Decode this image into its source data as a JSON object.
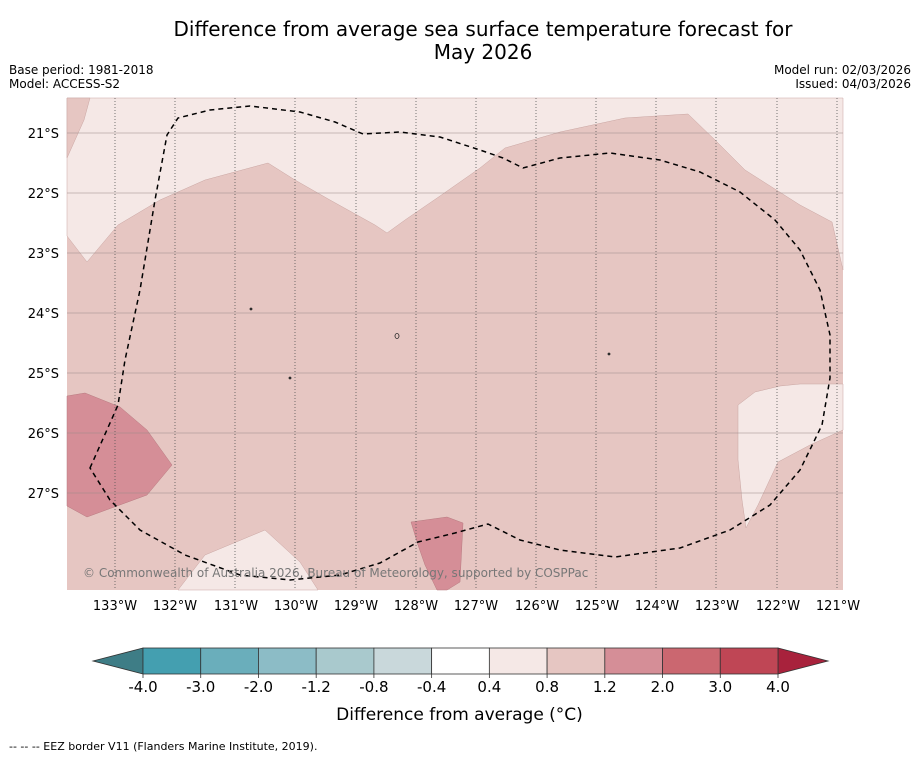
{
  "title_line1": "Difference from average sea surface temperature forecast for",
  "title_line2": "May 2026",
  "base_period": "Base period: 1981-2018",
  "model": "Model: ACCESS-S2",
  "model_run": "Model run: 02/03/2026",
  "issued": "Issued: 04/03/2026",
  "copyright": "© Commonwealth of Australia 2026, Bureau of Meteorology, supported by COSPPac",
  "colorbar_label": "Difference from average (°C)",
  "footnote": "-- -- -- EEZ border V11 (Flanders Marine Institute, 2019).",
  "chart_data": {
    "type": "heatmap",
    "title": "Difference from average sea surface temperature forecast for May 2026",
    "lon_range": [
      133.8,
      120.9
    ],
    "lat_range": [
      -20.6,
      -28.8
    ],
    "lon_ticks": [
      133,
      132,
      131,
      130,
      129,
      128,
      127,
      126,
      125,
      124,
      123,
      122,
      121
    ],
    "lon_tick_labels": [
      "133°W",
      "132°W",
      "131°W",
      "130°W",
      "129°W",
      "128°W",
      "127°W",
      "126°W",
      "125°W",
      "124°W",
      "123°W",
      "122°W",
      "121°W"
    ],
    "lat_ticks": [
      -21,
      -22,
      -23,
      -24,
      -25,
      -26,
      -27
    ],
    "lat_tick_labels": [
      "21°S",
      "22°S",
      "23°S",
      "24°S",
      "25°S",
      "26°S",
      "27°S"
    ],
    "colorbar": {
      "label": "Difference from average (°C)",
      "boundaries": [
        -4.0,
        -3.0,
        -2.0,
        -1.2,
        -0.8,
        -0.4,
        0.4,
        0.8,
        1.2,
        2.0,
        3.0,
        4.0
      ],
      "tick_labels": [
        "-4.0",
        "-3.0",
        "-2.0",
        "-1.2",
        "-0.8",
        "-0.4",
        "0.4",
        "0.8",
        "1.2",
        "2.0",
        "3.0",
        "4.0"
      ],
      "colors": [
        "#449fb0",
        "#6aaebb",
        "#8cbcc6",
        "#a9c9cd",
        "#c9d8db",
        "#ffffff",
        "#f5e8e6",
        "#e6c6c2",
        "#d58e97",
        "#cb6770",
        "#bf4655"
      ],
      "extend_low_color": "#3e7d86",
      "extend_high_color": "#a8223c"
    },
    "regions": [
      {
        "category": "0.8 to 1.2",
        "extent": "most of domain",
        "color": "#e6c6c2"
      },
      {
        "category": "0.4 to 0.8",
        "extent": "north and northwest",
        "color": "#f5e8e6"
      },
      {
        "category": "0.4 to 0.8",
        "extent": "east around 122°W, 25.5-28°S",
        "color": "#f5e8e6"
      },
      {
        "category": "0.4 to 0.8",
        "extent": "south near 130.5°W, 28°S",
        "color": "#f5e8e6"
      },
      {
        "category": "1.2 to 2.0",
        "extent": "west near 133.5°W, 26.5°S",
        "color": "#d58e97"
      },
      {
        "category": "1.2 to 2.0",
        "extent": "south near 127.7°W, 28°S",
        "color": "#d58e97"
      }
    ],
    "overlays": [
      "EEZ border V11 (dashed)",
      "islands near 128.4°W 24.4°S, 125°W 24.7°S, 130.9°W 23.9°S, 130.0°W 25.1°S"
    ]
  }
}
